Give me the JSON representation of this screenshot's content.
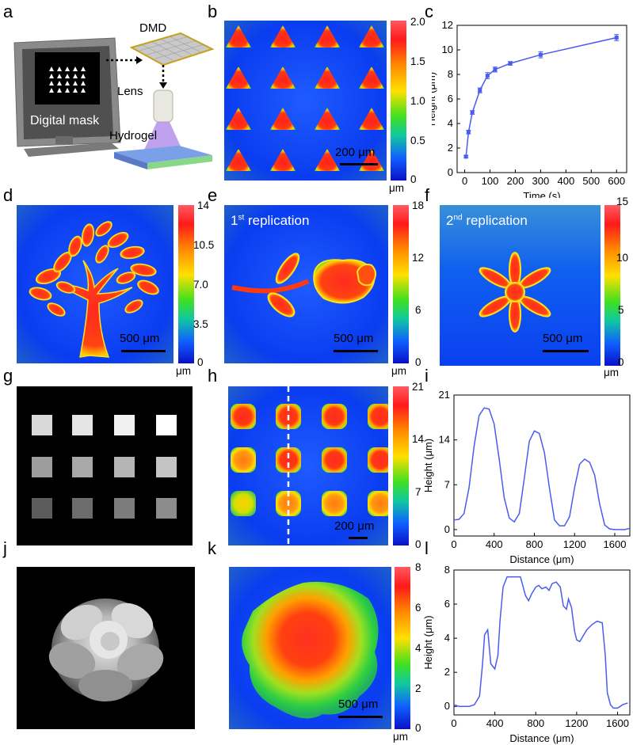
{
  "labels": {
    "a": "a",
    "b": "b",
    "c": "c",
    "d": "d",
    "e": "e",
    "f": "f",
    "g": "g",
    "h": "h",
    "i": "i",
    "j": "j",
    "k": "k",
    "l": "l"
  },
  "panel_a": {
    "dmd": "DMD",
    "lens": "Lens",
    "hydrogel": "Hydrogel",
    "digital_mask": "Digital mask"
  },
  "panel_b": {
    "ticks": [
      "2.0",
      "1.5",
      "1.0",
      "0.5",
      "0"
    ],
    "unit": "μm",
    "scale": "200 μm"
  },
  "panel_d": {
    "ticks": [
      "14",
      "10.5",
      "7.0",
      "3.5",
      "0"
    ],
    "unit": "μm",
    "scale": "500 μm"
  },
  "panel_e": {
    "title_num": "1",
    "title_sup": "st",
    "title_rest": " replication",
    "ticks": [
      "18",
      "12",
      "6",
      "0"
    ],
    "unit": "μm",
    "scale": "500 μm"
  },
  "panel_f": {
    "title_num": "2",
    "title_sup": "nd",
    "title_rest": " replication",
    "ticks": [
      "15",
      "10",
      "5",
      "0"
    ],
    "unit": "μm",
    "scale": "500 μm"
  },
  "panel_h": {
    "ticks": [
      "21",
      "14",
      "7",
      "0"
    ],
    "unit": "μm",
    "scale": "200 μm"
  },
  "panel_k": {
    "ticks": [
      "8",
      "6",
      "4",
      "2",
      "0"
    ],
    "unit": "μm",
    "scale": "500 μm"
  },
  "chart_data": [
    {
      "id": "c",
      "type": "line",
      "xlabel": "Time (s)",
      "ylabel": "Height (μm)",
      "xlim": [
        -30,
        640
      ],
      "ylim": [
        0,
        12
      ],
      "xticks": [
        0,
        100,
        200,
        300,
        400,
        500,
        600
      ],
      "yticks": [
        0,
        2,
        4,
        6,
        8,
        10,
        12
      ],
      "x": [
        5,
        15,
        30,
        60,
        90,
        120,
        180,
        300,
        600
      ],
      "y": [
        1.3,
        3.3,
        4.9,
        6.7,
        7.9,
        8.4,
        8.9,
        9.6,
        11.0
      ],
      "err": [
        0.1,
        0.15,
        0.15,
        0.2,
        0.25,
        0.2,
        0.15,
        0.25,
        0.25
      ]
    },
    {
      "id": "i",
      "type": "line",
      "xlabel": "Distance (μm)",
      "ylabel": "Height (μm)",
      "xlim": [
        0,
        1750
      ],
      "ylim": [
        -1,
        21
      ],
      "xticks": [
        0,
        400,
        800,
        1200,
        1600
      ],
      "yticks": [
        0,
        7,
        14,
        21
      ],
      "x": [
        0,
        50,
        100,
        150,
        200,
        250,
        300,
        350,
        400,
        450,
        500,
        550,
        600,
        650,
        700,
        750,
        800,
        850,
        900,
        950,
        1000,
        1050,
        1100,
        1150,
        1200,
        1250,
        1300,
        1350,
        1400,
        1450,
        1500,
        1550,
        1600,
        1650,
        1700,
        1750
      ],
      "y": [
        1.5,
        1.6,
        2.5,
        6.5,
        13,
        17.8,
        19,
        18.8,
        16.5,
        11,
        5,
        1.8,
        1.2,
        2.5,
        8,
        13.8,
        15.4,
        15,
        12,
        6.5,
        1.5,
        0.6,
        0.6,
        2,
        6.5,
        10.2,
        11,
        10.5,
        8.5,
        4,
        0.7,
        0.1,
        0,
        0,
        0,
        0.2
      ]
    },
    {
      "id": "l",
      "type": "line",
      "xlabel": "Distance (μm)",
      "ylabel": "Height (μm)",
      "xlim": [
        0,
        1720
      ],
      "ylim": [
        -0.5,
        8
      ],
      "xticks": [
        0,
        400,
        800,
        1200,
        1600
      ],
      "yticks": [
        0,
        2,
        4,
        6,
        8
      ],
      "x": [
        0,
        50,
        100,
        150,
        200,
        250,
        280,
        300,
        330,
        360,
        400,
        430,
        450,
        480,
        520,
        560,
        600,
        650,
        700,
        730,
        760,
        800,
        830,
        860,
        900,
        930,
        960,
        1000,
        1040,
        1070,
        1100,
        1120,
        1150,
        1180,
        1200,
        1230,
        1260,
        1300,
        1350,
        1400,
        1450,
        1480,
        1500,
        1530,
        1560,
        1600,
        1650,
        1700
      ],
      "y": [
        0.1,
        0,
        0,
        0,
        0.1,
        0.6,
        2.5,
        4.2,
        4.5,
        2.5,
        2.2,
        3,
        5,
        7,
        7.6,
        7.6,
        7.6,
        7.6,
        6.5,
        6.2,
        6.6,
        7.0,
        7.1,
        6.9,
        7.0,
        6.8,
        7.2,
        7.3,
        7.0,
        5.9,
        5.7,
        6.3,
        5.8,
        4.4,
        3.9,
        3.8,
        4.1,
        4.5,
        4.8,
        5.0,
        4.9,
        3,
        0.8,
        0.1,
        -0.1,
        -0.1,
        0.1,
        0.2
      ]
    }
  ]
}
